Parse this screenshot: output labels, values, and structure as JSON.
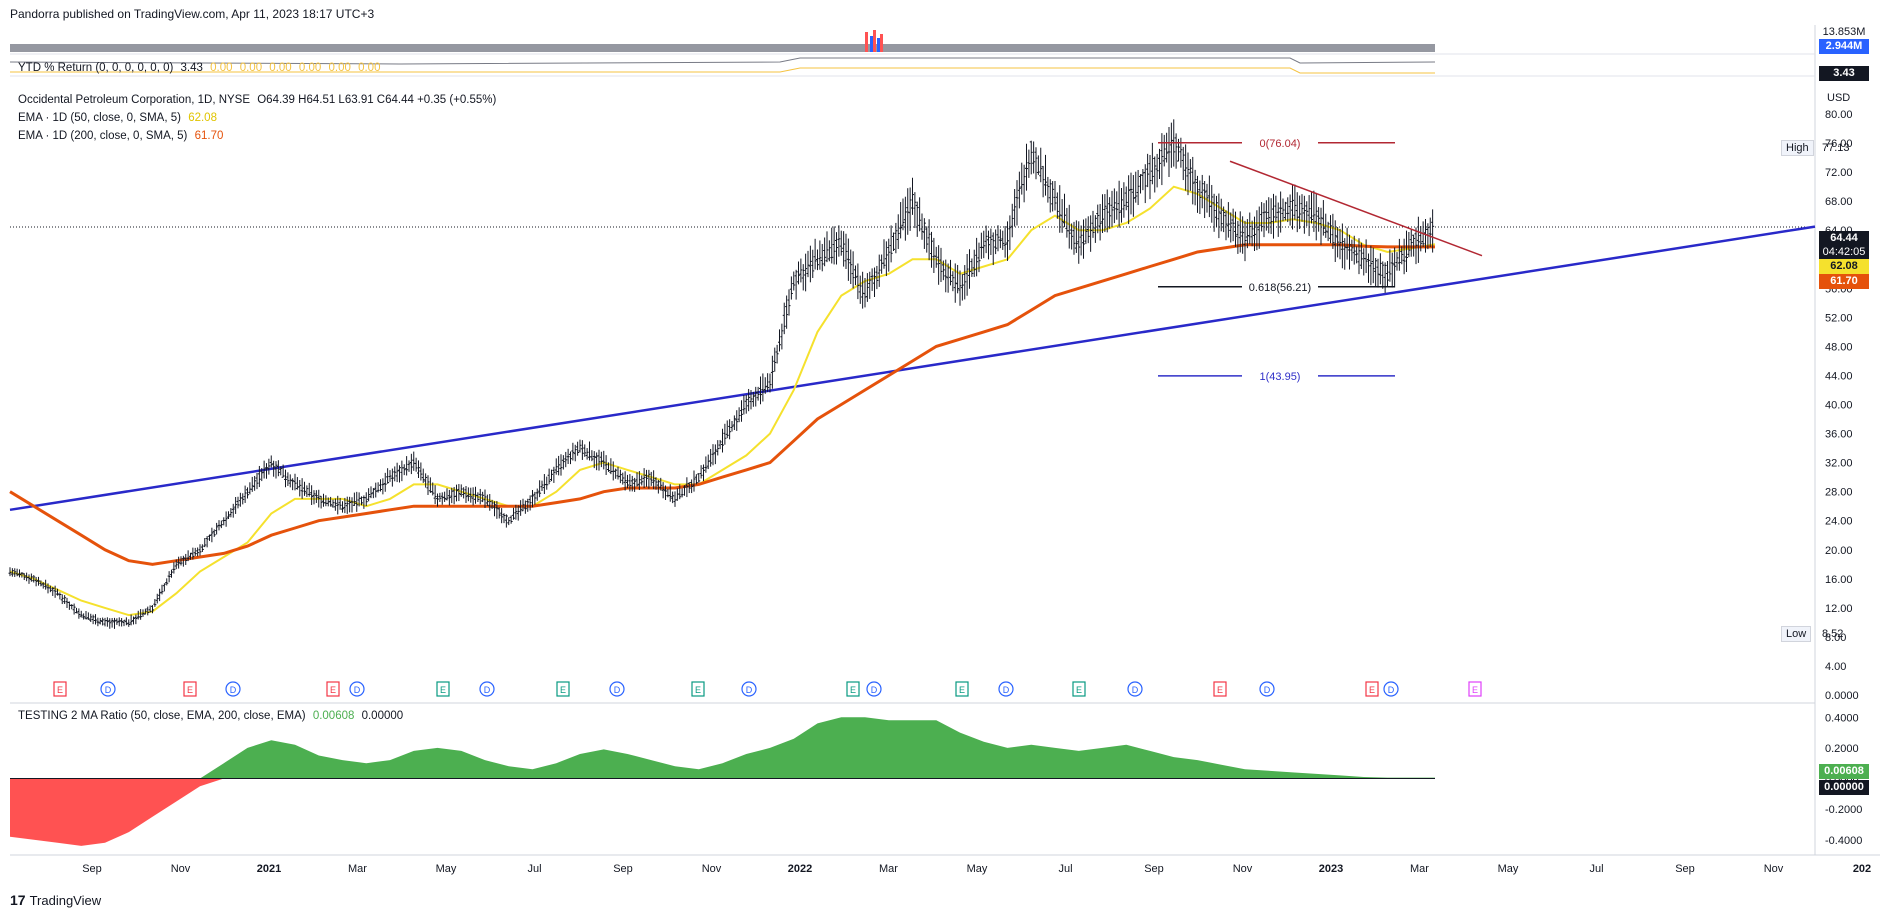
{
  "header": {
    "published": "Pandorra published on TradingView.com, Apr 11, 2023 18:17 UTC+3"
  },
  "volume": {
    "label_max": "13.853M",
    "label_cur": "2.944M"
  },
  "ytd": {
    "label": "YTD % Return (0, 0, 0, 0, 0, 0)",
    "v1": "3.43",
    "rest": [
      "0.00",
      "0.00",
      "0.00",
      "0.00",
      "0.00",
      "0.00"
    ],
    "tag": "3.43"
  },
  "main": {
    "symbol": "Occidental Petroleum Corporation, 1D, NYSE",
    "ohlc": "O64.39  H64.51  L63.91  C64.44  +0.35 (+0.55%)",
    "ema50_label": "EMA · 1D (50, close, 0, SMA, 5)",
    "ema50_value": "62.08",
    "ema200_label": "EMA · 1D (200, close, 0, SMA, 5)",
    "ema200_value": "61.70",
    "currency": "USD",
    "high_label": "High",
    "high_value": "77.13",
    "low_label": "Low",
    "low_value": "8.52",
    "last_price": "64.44",
    "countdown": "04:42:05"
  },
  "fib": {
    "f0": "0(76.04)",
    "f618": "0.618(56.21)",
    "f1": "1(43.95)"
  },
  "oscillator": {
    "label": "TESTING 2 MA Ratio (50, close, EMA, 200, close, EMA)",
    "v1": "0.00608",
    "v2": "0.00000",
    "tag1": "0.00608",
    "tag2": "0.00000",
    "ticks": [
      "0.4000",
      "0.2000",
      "0.0000",
      "-0.2000",
      "-0.4000"
    ]
  },
  "footer": {
    "brand": "TradingView"
  },
  "colors": {
    "ema50": "#f5e12d",
    "ema200": "#e5520b",
    "trendline": "#2929c9",
    "fib_top": "#b22833",
    "fib_bottom": "#3030c8",
    "osc_pos": "#4caf50",
    "osc_neg": "#ff5252"
  },
  "chart_data": [
    {
      "type": "line",
      "title": "Occidental Petroleum Corporation, 1D, NYSE",
      "ylabel": "USD",
      "ylim": [
        0,
        84
      ],
      "y_ticks": [
        "0.0000",
        "4.00",
        "8.00",
        "12.00",
        "16.00",
        "20.00",
        "24.00",
        "28.00",
        "32.00",
        "36.00",
        "40.00",
        "44.00",
        "48.00",
        "52.00",
        "56.00",
        "60.00",
        "64.00",
        "68.00",
        "72.00",
        "76.00",
        "80.00"
      ],
      "x_ticks": [
        "Sep",
        "Nov",
        "2021",
        "Mar",
        "May",
        "Jul",
        "Sep",
        "Nov",
        "2022",
        "Mar",
        "May",
        "Jul",
        "Sep",
        "Nov",
        "2023",
        "Mar",
        "May",
        "Jul",
        "Sep",
        "Nov",
        "202"
      ],
      "series": [
        {
          "name": "Occidental Petroleum Corporation, 1D, NYSE",
          "values": [
            17,
            16,
            14,
            11,
            10,
            10,
            12,
            18,
            20,
            24,
            28,
            32,
            29,
            27,
            26,
            27,
            30,
            32,
            27,
            28,
            27,
            24,
            27,
            31,
            34,
            32,
            29,
            30,
            27,
            30,
            35,
            40,
            43,
            57,
            60,
            62,
            55,
            61,
            68,
            60,
            56,
            62,
            63,
            75,
            68,
            62,
            66,
            68,
            72,
            76,
            70,
            66,
            63,
            66,
            67,
            66,
            62,
            60,
            58,
            62,
            64.44
          ]
        },
        {
          "name": "EMA · 1D (50, close, 0, SMA, 5)",
          "values": [
            17,
            16,
            14.5,
            13,
            12,
            11,
            11.5,
            14,
            17,
            19,
            21,
            25,
            27,
            27,
            27,
            26,
            27,
            29,
            29,
            28,
            27,
            26,
            26,
            28,
            31,
            32,
            31,
            30,
            29,
            29,
            31,
            33,
            36,
            42,
            50,
            55,
            57,
            58,
            60,
            60,
            58,
            59,
            60,
            64,
            66,
            64,
            64,
            65,
            67,
            70,
            69,
            67,
            65,
            65,
            65.5,
            65,
            64,
            62,
            61,
            61.5,
            62.08
          ]
        },
        {
          "name": "EMA · 1D (200, close, 0, SMA, 5)",
          "values": [
            28,
            26,
            24,
            22,
            20,
            18.5,
            18,
            18.5,
            19,
            19.5,
            20.5,
            22,
            23,
            24,
            24.5,
            25,
            25.5,
            26,
            26,
            26,
            26,
            26,
            26,
            26.5,
            27,
            28,
            28.5,
            28.5,
            28.5,
            29,
            30,
            31,
            32,
            35,
            38,
            40,
            42,
            44,
            46,
            48,
            49,
            50,
            51,
            53,
            55,
            56,
            57,
            58,
            59,
            60,
            61,
            61.5,
            62,
            62,
            62,
            62,
            62,
            61.8,
            61.7,
            61.7,
            61.7
          ]
        }
      ]
    },
    {
      "type": "area",
      "title": "TESTING 2 MA Ratio (50, close, EMA, 200, close, EMA)",
      "ylim": [
        -0.48,
        0.48
      ],
      "values": [
        -0.38,
        -0.4,
        -0.42,
        -0.44,
        -0.42,
        -0.35,
        -0.25,
        -0.15,
        -0.05,
        0.1,
        0.2,
        0.25,
        0.22,
        0.15,
        0.12,
        0.1,
        0.12,
        0.18,
        0.2,
        0.18,
        0.12,
        0.08,
        0.06,
        0.1,
        0.16,
        0.19,
        0.16,
        0.12,
        0.08,
        0.06,
        0.1,
        0.16,
        0.2,
        0.26,
        0.36,
        0.4,
        0.4,
        0.38,
        0.38,
        0.38,
        0.3,
        0.24,
        0.2,
        0.22,
        0.2,
        0.18,
        0.2,
        0.22,
        0.18,
        0.14,
        0.12,
        0.09,
        0.06,
        0.05,
        0.04,
        0.03,
        0.02,
        0.01,
        0.006,
        0.006,
        0.00608
      ]
    }
  ]
}
